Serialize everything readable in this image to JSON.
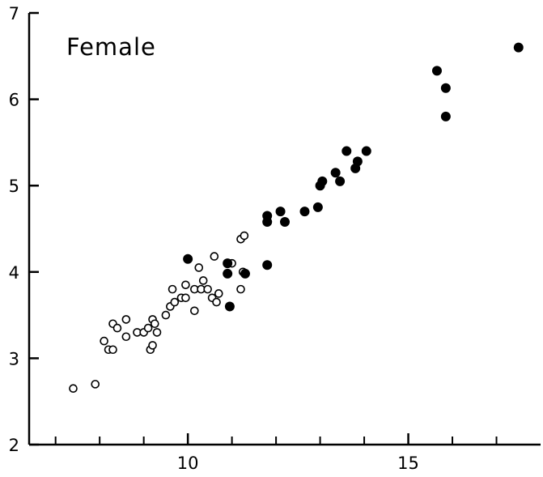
{
  "chart_data": {
    "type": "scatter",
    "title": "Female",
    "xlabel": "",
    "ylabel": "",
    "xlim": [
      6.4,
      18.0
    ],
    "ylim": [
      2,
      7
    ],
    "x_ticks": [
      10,
      15
    ],
    "x_minor_ticks": [
      7,
      8,
      9,
      11,
      12,
      13,
      14,
      16,
      17
    ],
    "y_ticks": [
      2,
      3,
      4,
      5,
      6,
      7
    ],
    "grid": false,
    "series": [
      {
        "marker": "open-circle",
        "color": "#000000",
        "points": [
          [
            7.4,
            2.65
          ],
          [
            7.9,
            2.7
          ],
          [
            8.1,
            3.2
          ],
          [
            8.2,
            3.1
          ],
          [
            8.3,
            3.1
          ],
          [
            8.3,
            3.4
          ],
          [
            8.4,
            3.35
          ],
          [
            8.6,
            3.25
          ],
          [
            8.6,
            3.45
          ],
          [
            8.85,
            3.3
          ],
          [
            9.0,
            3.3
          ],
          [
            9.1,
            3.35
          ],
          [
            9.15,
            3.1
          ],
          [
            9.2,
            3.15
          ],
          [
            9.2,
            3.45
          ],
          [
            9.25,
            3.4
          ],
          [
            9.3,
            3.3
          ],
          [
            9.5,
            3.5
          ],
          [
            9.6,
            3.6
          ],
          [
            9.65,
            3.8
          ],
          [
            9.7,
            3.65
          ],
          [
            9.85,
            3.7
          ],
          [
            9.95,
            3.7
          ],
          [
            9.95,
            3.85
          ],
          [
            10.15,
            3.8
          ],
          [
            10.15,
            3.55
          ],
          [
            10.25,
            4.05
          ],
          [
            10.3,
            3.8
          ],
          [
            10.35,
            3.9
          ],
          [
            10.45,
            3.8
          ],
          [
            10.55,
            3.7
          ],
          [
            10.6,
            4.18
          ],
          [
            10.65,
            3.65
          ],
          [
            10.7,
            3.75
          ],
          [
            11.2,
            3.8
          ],
          [
            11.2,
            4.38
          ],
          [
            11.28,
            4.42
          ],
          [
            11.0,
            4.1
          ],
          [
            11.25,
            4.0
          ]
        ]
      },
      {
        "marker": "filled-circle",
        "color": "#000000",
        "points": [
          [
            10.0,
            4.15
          ],
          [
            10.9,
            4.1
          ],
          [
            10.9,
            3.98
          ],
          [
            10.95,
            3.6
          ],
          [
            11.3,
            3.98
          ],
          [
            11.8,
            4.08
          ],
          [
            11.8,
            4.58
          ],
          [
            11.8,
            4.65
          ],
          [
            12.1,
            4.7
          ],
          [
            12.2,
            4.58
          ],
          [
            12.65,
            4.7
          ],
          [
            12.95,
            4.75
          ],
          [
            13.0,
            5.0
          ],
          [
            13.05,
            5.05
          ],
          [
            13.35,
            5.15
          ],
          [
            13.45,
            5.05
          ],
          [
            13.6,
            5.4
          ],
          [
            13.8,
            5.2
          ],
          [
            13.85,
            5.28
          ],
          [
            14.05,
            5.4
          ],
          [
            15.65,
            6.33
          ],
          [
            15.85,
            6.13
          ],
          [
            15.85,
            5.8
          ],
          [
            17.5,
            6.6
          ]
        ]
      }
    ]
  }
}
